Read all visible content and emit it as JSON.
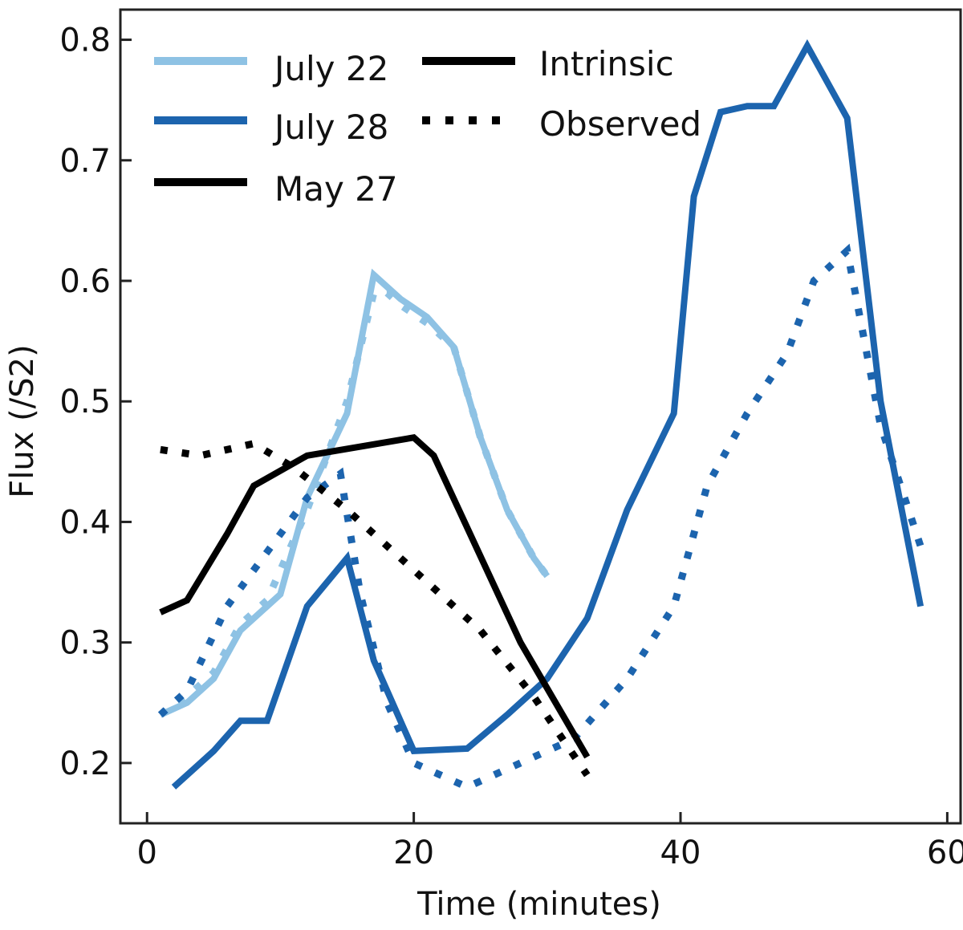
{
  "chart_data": {
    "type": "line",
    "title": "",
    "xlabel": "Time (minutes)",
    "ylabel": "Flux (/S2)",
    "xlim": [
      -2,
      61
    ],
    "ylim": [
      0.15,
      0.825
    ],
    "xticks": [
      0,
      20,
      40,
      60
    ],
    "yticks": [
      0.2,
      0.3,
      0.4,
      0.5,
      0.6,
      0.7,
      0.8
    ],
    "xtick_labels": [
      "0",
      "20",
      "40",
      "60"
    ],
    "ytick_labels": [
      "0.2",
      "0.3",
      "0.4",
      "0.5",
      "0.6",
      "0.7",
      "0.8"
    ],
    "grid": false,
    "legend": {
      "position": "top-left",
      "colors": [
        "July 22",
        "July 28",
        "May 27"
      ],
      "styles": [
        "Intrinsic",
        "Observed"
      ]
    },
    "colors": {
      "July 22": "#8ec2e4",
      "July 28": "#1c64ae",
      "May 27": "#000000"
    },
    "series": [
      {
        "name": "July 22",
        "style": "Intrinsic",
        "x": [
          1,
          3,
          5,
          7,
          9,
          10,
          12,
          15,
          17,
          18,
          19,
          21,
          23,
          25,
          27,
          29,
          30
        ],
        "y": [
          0.24,
          0.25,
          0.27,
          0.31,
          0.33,
          0.34,
          0.42,
          0.49,
          0.605,
          0.595,
          0.585,
          0.57,
          0.545,
          0.47,
          0.41,
          0.37,
          0.355
        ]
      },
      {
        "name": "July 22",
        "style": "Observed",
        "x": [
          1,
          3,
          5,
          7,
          9,
          12,
          15,
          17,
          18,
          19,
          21,
          23,
          25,
          27,
          29,
          30
        ],
        "y": [
          0.24,
          0.255,
          0.275,
          0.315,
          0.335,
          0.41,
          0.5,
          0.59,
          0.59,
          0.58,
          0.565,
          0.545,
          0.47,
          0.41,
          0.37,
          0.355
        ]
      },
      {
        "name": "July 28",
        "style": "Intrinsic",
        "x": [
          2,
          5,
          7,
          9,
          12,
          15,
          17,
          20,
          24,
          27,
          30,
          33,
          36,
          39.5,
          41,
          43,
          45,
          47,
          49.5,
          52.5,
          55,
          58
        ],
        "y": [
          0.18,
          0.21,
          0.235,
          0.235,
          0.33,
          0.37,
          0.285,
          0.21,
          0.212,
          0.24,
          0.27,
          0.32,
          0.41,
          0.49,
          0.67,
          0.74,
          0.745,
          0.745,
          0.795,
          0.735,
          0.5,
          0.33
        ]
      },
      {
        "name": "July 28",
        "style": "Observed",
        "x": [
          1,
          3,
          6,
          9,
          12,
          14.5,
          16,
          18,
          20,
          24,
          28,
          32,
          36,
          39.5,
          42,
          45,
          48,
          50,
          52.5,
          55,
          58
        ],
        "y": [
          0.24,
          0.26,
          0.33,
          0.375,
          0.42,
          0.44,
          0.34,
          0.25,
          0.2,
          0.18,
          0.2,
          0.22,
          0.27,
          0.33,
          0.43,
          0.49,
          0.54,
          0.6,
          0.625,
          0.48,
          0.38
        ]
      },
      {
        "name": "May 27",
        "style": "Intrinsic",
        "x": [
          1,
          3,
          6,
          8,
          12,
          20,
          21.5,
          28,
          33
        ],
        "y": [
          0.325,
          0.335,
          0.39,
          0.43,
          0.455,
          0.47,
          0.455,
          0.3,
          0.205
        ]
      },
      {
        "name": "May 27",
        "style": "Observed",
        "x": [
          1,
          4,
          8,
          11,
          15,
          20,
          25,
          29,
          33
        ],
        "y": [
          0.46,
          0.455,
          0.465,
          0.445,
          0.41,
          0.36,
          0.31,
          0.255,
          0.19
        ]
      }
    ]
  }
}
